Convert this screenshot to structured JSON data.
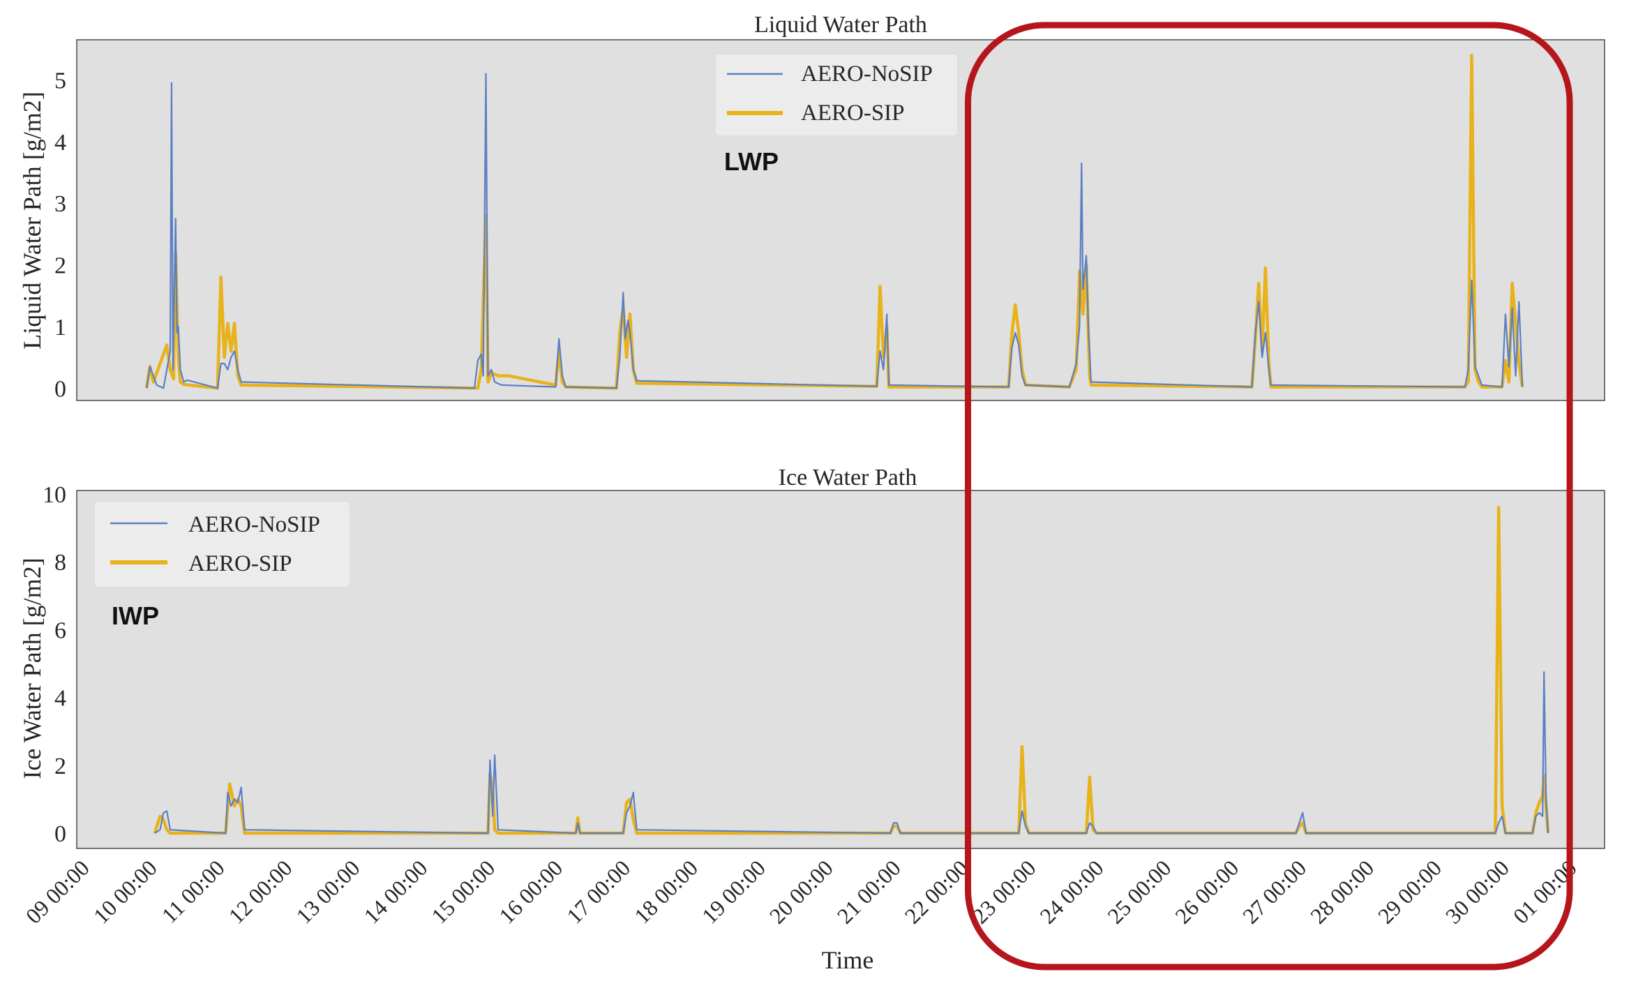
{
  "chart_data": [
    {
      "type": "line",
      "title": "Liquid Water Path",
      "ylabel": "Liquid Water Path [g/m2]",
      "xlabel": "",
      "panel_label": "LWP",
      "ylim": [
        -0.2,
        5.65
      ],
      "yticks": [
        0,
        1,
        2,
        3,
        4,
        5
      ],
      "grid": false,
      "background": "#e0e0e0",
      "legend_position": "upper-center",
      "series": [
        {
          "name": "AERO-NoSIP",
          "color": "#5b7fc4",
          "linewidth": "thin",
          "points": [
            [
              9.95,
              0
            ],
            [
              10.0,
              0.35
            ],
            [
              10.05,
              0.2
            ],
            [
              10.1,
              0.05
            ],
            [
              10.2,
              0
            ],
            [
              10.3,
              0.6
            ],
            [
              10.32,
              4.95
            ],
            [
              10.34,
              0.3
            ],
            [
              10.38,
              2.75
            ],
            [
              10.4,
              0.9
            ],
            [
              10.42,
              1.0
            ],
            [
              10.45,
              0.3
            ],
            [
              10.5,
              0.1
            ],
            [
              10.55,
              0.13
            ],
            [
              11.0,
              0
            ],
            [
              11.05,
              0.4
            ],
            [
              11.1,
              0.4
            ],
            [
              11.15,
              0.3
            ],
            [
              11.2,
              0.5
            ],
            [
              11.25,
              0.6
            ],
            [
              11.3,
              0.3
            ],
            [
              11.35,
              0.1
            ],
            [
              14.8,
              0
            ],
            [
              14.85,
              0.45
            ],
            [
              14.9,
              0.55
            ],
            [
              14.93,
              0.2
            ],
            [
              14.97,
              5.1
            ],
            [
              15.0,
              0.2
            ],
            [
              15.05,
              0.3
            ],
            [
              15.1,
              0.1
            ],
            [
              15.2,
              0.05
            ],
            [
              16.0,
              0.02
            ],
            [
              16.05,
              0.8
            ],
            [
              16.1,
              0.2
            ],
            [
              16.15,
              0.02
            ],
            [
              16.9,
              0
            ],
            [
              16.95,
              0.5
            ],
            [
              17.0,
              1.55
            ],
            [
              17.03,
              0.8
            ],
            [
              17.07,
              1.1
            ],
            [
              17.1,
              0.9
            ],
            [
              17.15,
              0.3
            ],
            [
              17.2,
              0.12
            ],
            [
              20.75,
              0.03
            ],
            [
              20.8,
              0.6
            ],
            [
              20.85,
              0.3
            ],
            [
              20.9,
              1.2
            ],
            [
              20.93,
              0.05
            ],
            [
              22.7,
              0.02
            ],
            [
              22.75,
              0.65
            ],
            [
              22.8,
              0.9
            ],
            [
              22.85,
              0.7
            ],
            [
              22.9,
              0.2
            ],
            [
              22.95,
              0.05
            ],
            [
              23.6,
              0.02
            ],
            [
              23.7,
              0.4
            ],
            [
              23.75,
              1.0
            ],
            [
              23.78,
              3.65
            ],
            [
              23.8,
              1.6
            ],
            [
              23.85,
              2.15
            ],
            [
              23.88,
              1.0
            ],
            [
              23.92,
              0.1
            ],
            [
              26.3,
              0.02
            ],
            [
              26.35,
              0.9
            ],
            [
              26.4,
              1.4
            ],
            [
              26.45,
              0.5
            ],
            [
              26.5,
              0.9
            ],
            [
              26.55,
              0.3
            ],
            [
              26.58,
              0.05
            ],
            [
              29.45,
              0.02
            ],
            [
              29.5,
              0.3
            ],
            [
              29.55,
              1.75
            ],
            [
              29.6,
              0.35
            ],
            [
              29.65,
              0.2
            ],
            [
              29.7,
              0.05
            ],
            [
              30.0,
              0.02
            ],
            [
              30.05,
              1.2
            ],
            [
              30.1,
              0.35
            ],
            [
              30.15,
              1.3
            ],
            [
              30.2,
              0.2
            ],
            [
              30.25,
              1.4
            ],
            [
              30.3,
              0.02
            ]
          ]
        },
        {
          "name": "AERO-SIP",
          "color": "#e8b21a",
          "linewidth": "thick",
          "points": [
            [
              9.95,
              0
            ],
            [
              10.0,
              0.35
            ],
            [
              10.05,
              0.1
            ],
            [
              10.25,
              0.7
            ],
            [
              10.3,
              0.3
            ],
            [
              10.35,
              0.15
            ],
            [
              10.38,
              2.2
            ],
            [
              10.42,
              0.5
            ],
            [
              10.45,
              0.1
            ],
            [
              10.5,
              0.06
            ],
            [
              11.0,
              0
            ],
            [
              11.05,
              1.8
            ],
            [
              11.1,
              0.5
            ],
            [
              11.15,
              1.05
            ],
            [
              11.2,
              0.6
            ],
            [
              11.25,
              1.05
            ],
            [
              11.3,
              0.2
            ],
            [
              11.35,
              0.05
            ],
            [
              14.85,
              0
            ],
            [
              14.9,
              0.3
            ],
            [
              14.97,
              2.8
            ],
            [
              15.0,
              0.1
            ],
            [
              15.05,
              0.25
            ],
            [
              15.15,
              0.2
            ],
            [
              15.3,
              0.2
            ],
            [
              16.0,
              0.05
            ],
            [
              16.05,
              0.6
            ],
            [
              16.1,
              0.1
            ],
            [
              16.15,
              0.02
            ],
            [
              16.9,
              0
            ],
            [
              16.95,
              0.9
            ],
            [
              17.0,
              1.3
            ],
            [
              17.05,
              0.5
            ],
            [
              17.1,
              1.2
            ],
            [
              17.15,
              0.3
            ],
            [
              17.2,
              0.08
            ],
            [
              20.75,
              0.03
            ],
            [
              20.8,
              1.65
            ],
            [
              20.85,
              0.5
            ],
            [
              20.9,
              1.0
            ],
            [
              20.93,
              0.02
            ],
            [
              22.7,
              0.02
            ],
            [
              22.75,
              0.9
            ],
            [
              22.8,
              1.35
            ],
            [
              22.85,
              0.9
            ],
            [
              22.9,
              0.3
            ],
            [
              22.95,
              0.05
            ],
            [
              23.6,
              0.02
            ],
            [
              23.7,
              0.3
            ],
            [
              23.75,
              1.9
            ],
            [
              23.8,
              1.2
            ],
            [
              23.85,
              2.0
            ],
            [
              23.9,
              0.2
            ],
            [
              23.92,
              0.05
            ],
            [
              26.3,
              0.02
            ],
            [
              26.35,
              0.8
            ],
            [
              26.4,
              1.7
            ],
            [
              26.45,
              0.6
            ],
            [
              26.5,
              1.95
            ],
            [
              26.55,
              0.4
            ],
            [
              26.58,
              0.02
            ],
            [
              29.45,
              0.02
            ],
            [
              29.5,
              0.1
            ],
            [
              29.55,
              5.4
            ],
            [
              29.6,
              0.3
            ],
            [
              29.65,
              0.1
            ],
            [
              29.7,
              0.02
            ],
            [
              30.0,
              0.02
            ],
            [
              30.05,
              0.45
            ],
            [
              30.1,
              0.1
            ],
            [
              30.15,
              1.7
            ],
            [
              30.2,
              1.05
            ],
            [
              30.25,
              0.4
            ],
            [
              30.3,
              0.02
            ]
          ]
        }
      ]
    },
    {
      "type": "line",
      "title": "Ice Water Path",
      "ylabel": "Ice Water Path [g/m2]",
      "xlabel": "Time",
      "panel_label": "IWP",
      "ylim": [
        -0.45,
        10.1
      ],
      "yticks": [
        0,
        2,
        4,
        6,
        8,
        10
      ],
      "xticks": [
        "09 00:00",
        "10 00:00",
        "11 00:00",
        "12 00:00",
        "13 00:00",
        "14 00:00",
        "15 00:00",
        "16 00:00",
        "17 00:00",
        "18 00:00",
        "19 00:00",
        "20 00:00",
        "21 00:00",
        "22 00:00",
        "23 00:00",
        "24 00:00",
        "25 00:00",
        "26 00:00",
        "27 00:00",
        "28 00:00",
        "29 00:00",
        "30 00:00",
        "01 00:00"
      ],
      "grid": false,
      "background": "#e0e0e0",
      "legend_position": "upper-left",
      "series": [
        {
          "name": "AERO-NoSIP",
          "color": "#5b7fc4",
          "linewidth": "thin",
          "points": [
            [
              10.07,
              0
            ],
            [
              10.15,
              0.1
            ],
            [
              10.2,
              0.6
            ],
            [
              10.25,
              0.65
            ],
            [
              10.3,
              0.1
            ],
            [
              11.12,
              0
            ],
            [
              11.15,
              1.2
            ],
            [
              11.2,
              0.8
            ],
            [
              11.25,
              1.0
            ],
            [
              11.3,
              0.9
            ],
            [
              11.35,
              1.35
            ],
            [
              11.4,
              0.1
            ],
            [
              15.0,
              0
            ],
            [
              15.03,
              2.15
            ],
            [
              15.07,
              0.5
            ],
            [
              15.1,
              2.3
            ],
            [
              15.15,
              0.1
            ],
            [
              16.3,
              0
            ],
            [
              16.33,
              0.3
            ],
            [
              16.36,
              0
            ],
            [
              17.0,
              0
            ],
            [
              17.05,
              0.6
            ],
            [
              17.1,
              0.8
            ],
            [
              17.15,
              1.2
            ],
            [
              17.2,
              0.1
            ],
            [
              20.95,
              0
            ],
            [
              21.0,
              0.3
            ],
            [
              21.05,
              0.3
            ],
            [
              21.1,
              0
            ],
            [
              22.85,
              0
            ],
            [
              22.9,
              0.65
            ],
            [
              22.95,
              0.2
            ],
            [
              23.0,
              0
            ],
            [
              23.85,
              0
            ],
            [
              23.9,
              0.3
            ],
            [
              23.95,
              0.2
            ],
            [
              24.0,
              0
            ],
            [
              26.95,
              0
            ],
            [
              27.0,
              0.3
            ],
            [
              27.05,
              0.6
            ],
            [
              27.1,
              0
            ],
            [
              29.9,
              0
            ],
            [
              29.95,
              0.3
            ],
            [
              30.0,
              0.5
            ],
            [
              30.05,
              0
            ],
            [
              30.45,
              0
            ],
            [
              30.5,
              0.5
            ],
            [
              30.55,
              0.6
            ],
            [
              30.6,
              0.5
            ],
            [
              30.62,
              4.75
            ],
            [
              30.65,
              1.0
            ],
            [
              30.68,
              0
            ]
          ]
        },
        {
          "name": "AERO-SIP",
          "color": "#e8b21a",
          "linewidth": "thick",
          "points": [
            [
              10.07,
              0
            ],
            [
              10.15,
              0.5
            ],
            [
              10.2,
              0.4
            ],
            [
              10.25,
              0.1
            ],
            [
              10.3,
              0
            ],
            [
              11.12,
              0
            ],
            [
              11.18,
              1.45
            ],
            [
              11.25,
              0.8
            ],
            [
              11.3,
              1.0
            ],
            [
              11.35,
              0.8
            ],
            [
              11.4,
              0
            ],
            [
              15.0,
              0
            ],
            [
              15.03,
              1.75
            ],
            [
              15.07,
              1.3
            ],
            [
              15.1,
              0.1
            ],
            [
              15.15,
              0
            ],
            [
              16.3,
              0
            ],
            [
              16.33,
              0.45
            ],
            [
              16.36,
              0
            ],
            [
              17.0,
              0
            ],
            [
              17.05,
              0.9
            ],
            [
              17.1,
              1.0
            ],
            [
              17.15,
              0.4
            ],
            [
              17.2,
              0
            ],
            [
              20.95,
              0
            ],
            [
              21.0,
              0.2
            ],
            [
              21.05,
              0.2
            ],
            [
              21.1,
              0
            ],
            [
              22.85,
              0
            ],
            [
              22.9,
              2.55
            ],
            [
              22.95,
              0.3
            ],
            [
              23.0,
              0
            ],
            [
              23.85,
              0
            ],
            [
              23.9,
              1.65
            ],
            [
              23.95,
              0.1
            ],
            [
              24.0,
              0
            ],
            [
              26.95,
              0
            ],
            [
              27.0,
              0.2
            ],
            [
              27.05,
              0.3
            ],
            [
              27.1,
              0
            ],
            [
              29.9,
              0
            ],
            [
              29.95,
              9.6
            ],
            [
              30.0,
              0.8
            ],
            [
              30.05,
              0
            ],
            [
              30.45,
              0
            ],
            [
              30.5,
              0.6
            ],
            [
              30.55,
              0.9
            ],
            [
              30.6,
              1.1
            ],
            [
              30.62,
              1.7
            ],
            [
              30.65,
              0.8
            ],
            [
              30.68,
              0
            ]
          ]
        }
      ]
    }
  ],
  "annotation": {
    "type": "highlight-box",
    "color": "#b5161b",
    "x_range": [
      22.1,
      31.0
    ]
  }
}
